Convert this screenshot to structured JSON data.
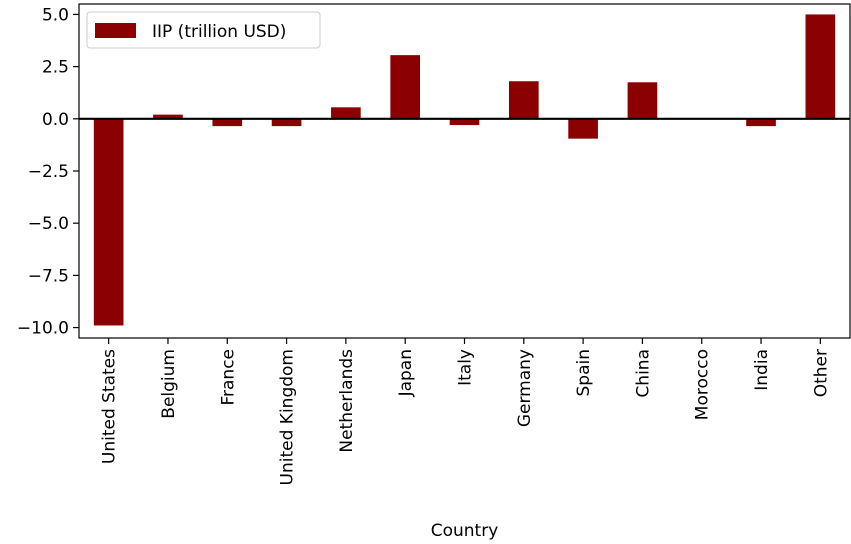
{
  "chart_data": {
    "type": "bar",
    "title": "",
    "xlabel": "Country",
    "ylabel": "",
    "categories": [
      "United States",
      "Belgium",
      "France",
      "United Kingdom",
      "Netherlands",
      "Japan",
      "Italy",
      "Germany",
      "Spain",
      "China",
      "Morocco",
      "India",
      "Other"
    ],
    "series": [
      {
        "name": "IIP (trillion USD)",
        "color": "#8b0000",
        "values": [
          -9.9,
          0.2,
          -0.35,
          -0.35,
          0.55,
          3.05,
          -0.3,
          1.8,
          -0.95,
          1.75,
          0.0,
          -0.35,
          5.0
        ]
      }
    ],
    "ylim": [
      -10.5,
      5.5
    ],
    "yticks": [
      -10.0,
      -7.5,
      -5.0,
      -2.5,
      0.0,
      2.5,
      5.0
    ],
    "ytick_labels": [
      "−10.0",
      "−7.5",
      "−5.0",
      "−2.5",
      "0.0",
      "2.5",
      "5.0"
    ],
    "zero_line": true,
    "grid": false,
    "legend_position": "top-left"
  }
}
